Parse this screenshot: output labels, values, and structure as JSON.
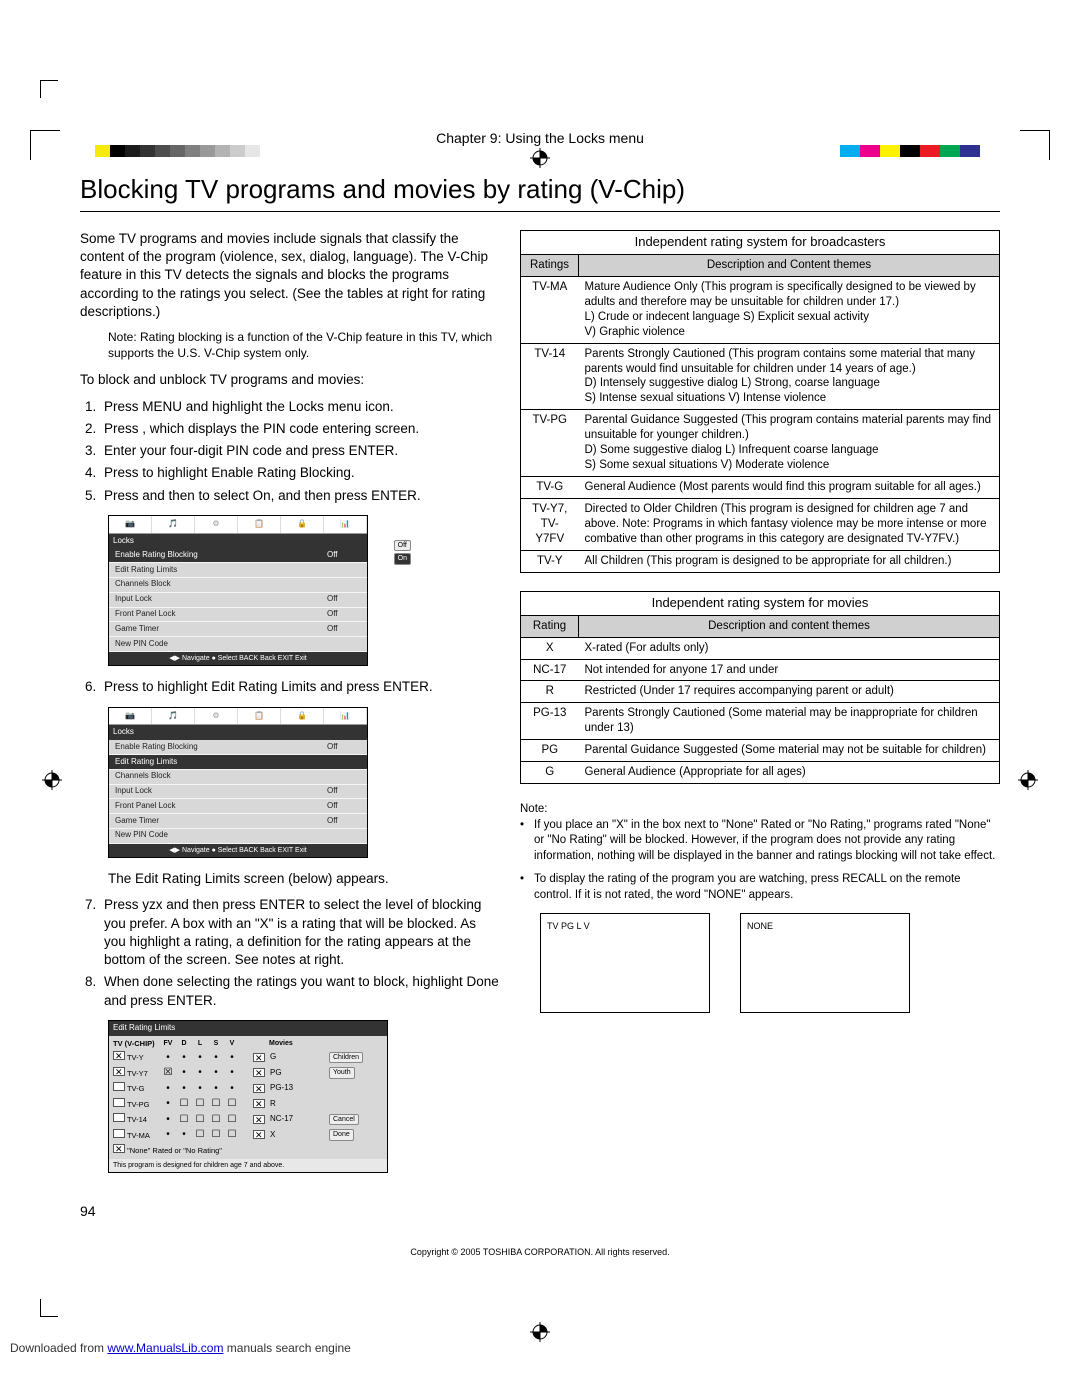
{
  "colorbar": [
    "#ffffff",
    "#f6ea08",
    "#000000",
    "#1b1b1b",
    "#333333",
    "#4d4d4d",
    "#666666",
    "#808080",
    "#999999",
    "#b3b3b3",
    "#cccccc",
    "#e6e6e6",
    "#ffffff"
  ],
  "colorbar2": [
    "#00aeef",
    "#ec008c",
    "#fff200",
    "#000000",
    "#ed1c24",
    "#00a651",
    "#2e3192",
    "#ffffff"
  ],
  "chapter": "Chapter 9: Using the Locks menu",
  "title": "Blocking TV programs and movies by rating (V-Chip)",
  "intro": "Some TV programs and movies include signals that classify the content of the program (violence, sex, dialog, language). The V-Chip feature in this TV detects the signals and blocks the programs according to the ratings you select. (See the tables at right for rating descriptions.)",
  "note1": "Note: Rating blocking is a function of the V-Chip feature in this TV, which supports the U.S. V-Chip system only.",
  "subhead1": "To block and unblock TV programs and movies:",
  "steps1": [
    "Press MENU and highlight the Locks menu icon.",
    "Press , which displays the PIN code entering screen.",
    "Enter your four-digit PIN code and press ENTER.",
    "Press  to highlight Enable Rating Blocking.",
    "Press  and then  to select On, and then press ENTER."
  ],
  "menu1": {
    "title": "Locks",
    "rows": [
      {
        "label": "Enable Rating Blocking",
        "val": "Off",
        "hl": true,
        "opts": [
          "Off",
          "On"
        ]
      },
      {
        "label": "Edit Rating Limits",
        "val": ""
      },
      {
        "label": "Channels Block",
        "val": ""
      },
      {
        "label": "Input Lock",
        "val": "Off"
      },
      {
        "label": "Front Panel Lock",
        "val": "Off"
      },
      {
        "label": "Game Timer",
        "val": "Off"
      },
      {
        "label": "New PIN Code",
        "val": ""
      }
    ],
    "foot": "◀▶ Navigate  ● Select  BACK Back  EXIT Exit"
  },
  "step6": "Press  to highlight Edit Rating Limits and press ENTER.",
  "menu2": {
    "title": "Locks",
    "rows": [
      {
        "label": "Enable Rating Blocking",
        "val": "Off"
      },
      {
        "label": "Edit Rating Limits",
        "val": "",
        "hl": true
      },
      {
        "label": "Channels Block",
        "val": ""
      },
      {
        "label": "Input Lock",
        "val": "Off"
      },
      {
        "label": "Front Panel Lock",
        "val": "Off"
      },
      {
        "label": "Game Timer",
        "val": "Off"
      },
      {
        "label": "New PIN Code",
        "val": ""
      }
    ],
    "foot": "◀▶ Navigate  ● Select  BACK Back  EXIT Exit"
  },
  "after_menu2": "The Edit Rating Limits screen (below) appears.",
  "step7": "Press yzx       and then press ENTER to select the level of blocking you prefer. A box with an \"X\" is a rating that will be blocked. As you highlight a rating, a definition for the rating appears at the bottom of the screen. See notes at right.",
  "step8": "When done selecting the ratings you want to block, highlight Done and press ENTER.",
  "edit_ss": {
    "title": "Edit Rating Limits",
    "head": [
      "TV (V-CHIP)",
      "FV",
      "D",
      "L",
      "S",
      "V",
      "",
      "Movies"
    ],
    "rows": [
      {
        "label": "TV-Y",
        "chk": true,
        "cells": [
          "•",
          "•",
          "•",
          "•",
          "•"
        ],
        "movie_chk": true,
        "movie": "G",
        "rtag": "Children"
      },
      {
        "label": "TV-Y7",
        "chk": true,
        "cells": [
          "☒",
          "•",
          "•",
          "•",
          "•"
        ],
        "movie_chk": true,
        "movie": "PG",
        "rtag": "Youth"
      },
      {
        "label": "TV-G",
        "chk": false,
        "cells": [
          "•",
          "•",
          "•",
          "•",
          "•"
        ],
        "movie_chk": true,
        "movie": "PG-13",
        "rtag": ""
      },
      {
        "label": "TV-PG",
        "chk": false,
        "cells": [
          "•",
          "☐",
          "☐",
          "☐",
          "☐"
        ],
        "movie_chk": true,
        "movie": "R",
        "rtag": ""
      },
      {
        "label": "TV-14",
        "chk": false,
        "cells": [
          "•",
          "☐",
          "☐",
          "☐",
          "☐"
        ],
        "movie_chk": true,
        "movie": "NC-17",
        "rtag": "Cancel"
      },
      {
        "label": "TV-MA",
        "chk": false,
        "cells": [
          "•",
          "•",
          "☐",
          "☐",
          "☐"
        ],
        "movie_chk": true,
        "movie": "X",
        "rtag": "Done"
      }
    ],
    "none_label": "\"None\" Rated or \"No Rating\"",
    "foot": "This program is designed for children age 7 and above."
  },
  "table1": {
    "caption": "Independent rating system for broadcasters",
    "h1": "Ratings",
    "h2": "Description and Content themes",
    "rows": [
      {
        "r": "TV-MA",
        "d": "Mature Audience Only (This program is specifically designed to be viewed by adults and therefore may be unsuitable for children under 17.)\nL) Crude or indecent language S) Explicit sexual activity\nV) Graphic violence"
      },
      {
        "r": "TV-14",
        "d": "Parents Strongly Cautioned (This program contains some material that many parents would find unsuitable for children under 14 years of age.)\nD) Intensely suggestive dialog L) Strong, coarse language\nS) Intense sexual situations V) Intense violence"
      },
      {
        "r": "TV-PG",
        "d": "Parental Guidance Suggested (This program contains material parents may find unsuitable for younger children.)\nD) Some suggestive dialog L) Infrequent coarse language\nS) Some sexual situations V) Moderate violence"
      },
      {
        "r": "TV-G",
        "d": "General Audience (Most parents would find this program suitable for all ages.)"
      },
      {
        "r": "TV-Y7,\nTV-Y7FV",
        "d": "Directed to Older Children (This program is designed for children age 7 and above. Note: Programs in which fantasy violence may be more intense or more combative than other programs in this category are designated TV-Y7FV.)"
      },
      {
        "r": "TV-Y",
        "d": "All Children (This program is designed to be appropriate for all children.)"
      }
    ]
  },
  "table2": {
    "caption": "Independent rating system for movies",
    "h1": "Rating",
    "h2": "Description and content themes",
    "rows": [
      {
        "r": "X",
        "d": "X-rated (For adults only)"
      },
      {
        "r": "NC-17",
        "d": "Not intended for anyone 17 and under"
      },
      {
        "r": "R",
        "d": "Restricted (Under 17 requires accompanying parent or adult)"
      },
      {
        "r": "PG-13",
        "d": "Parents Strongly Cautioned (Some material may be inappropriate for children under 13)"
      },
      {
        "r": "PG",
        "d": "Parental Guidance Suggested (Some material may not be suitable for children)"
      },
      {
        "r": "G",
        "d": "General Audience (Appropriate for all ages)"
      }
    ]
  },
  "notes_hdr": "Note:",
  "notes": [
    "If you place an \"X\" in the box next to \"None\" Rated or \"No Rating,\" programs rated \"None\" or \"No Rating\" will be blocked. However, if the program does not provide any rating information, nothing will be displayed in the banner and ratings blocking will not take effect.",
    "To display the rating of the program you are watching, press RECALL on the remote control. If it is not rated, the word \"NONE\" appears."
  ],
  "notebox1": "TV   PG    L   V",
  "notebox2": "NONE",
  "page_num": "94",
  "copyright": "Copyright © 2005 TOSHIBA CORPORATION. All rights reserved.",
  "download": {
    "pre": "Downloaded from ",
    "link": "www.ManualsLib.com",
    "post": " manuals search engine"
  }
}
